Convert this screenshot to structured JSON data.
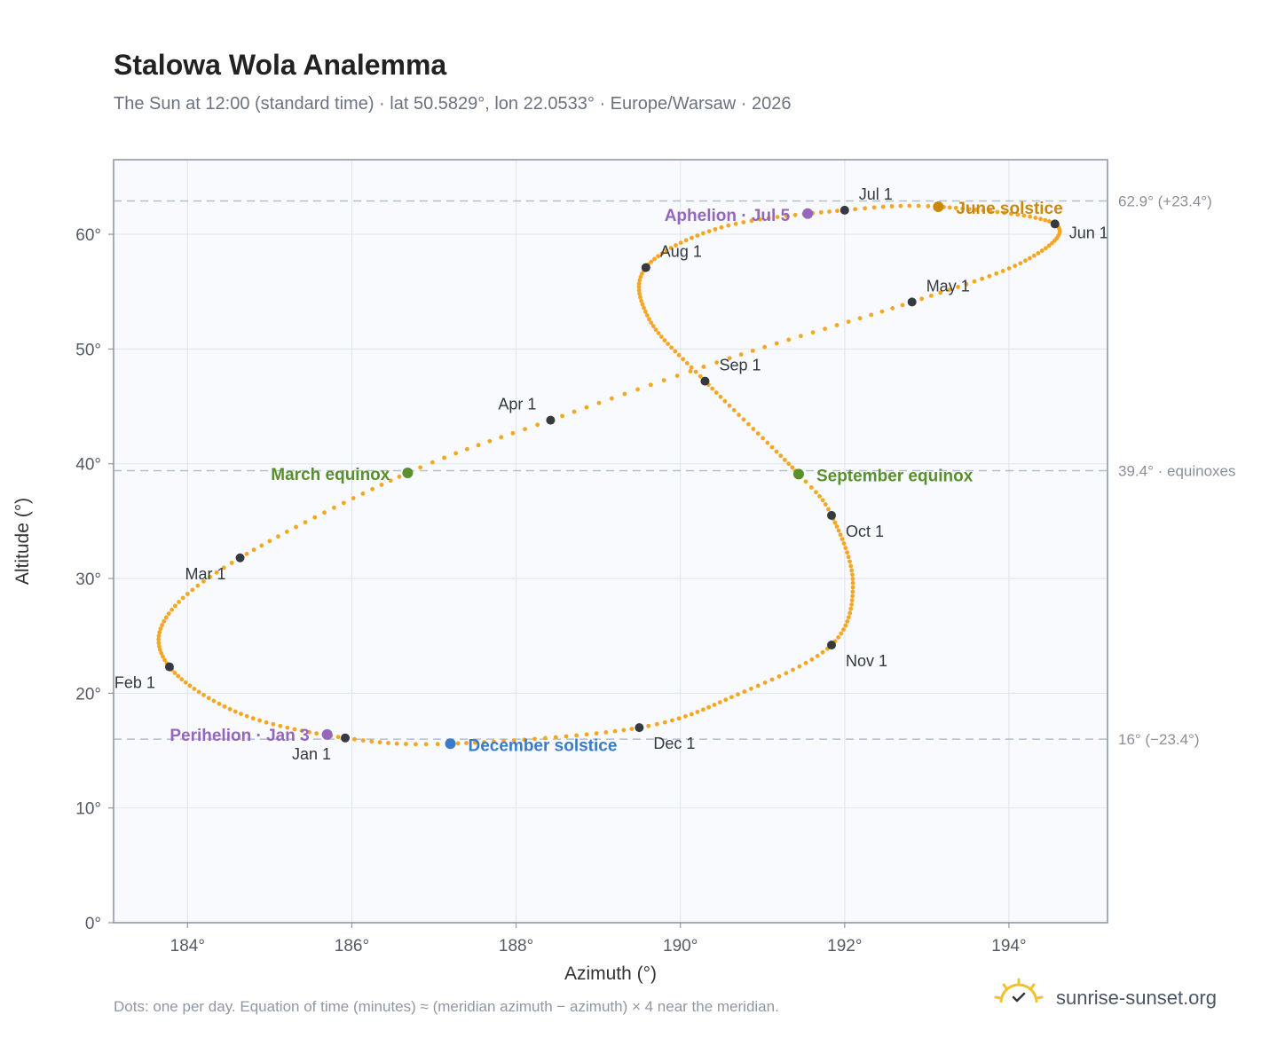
{
  "title": "Stalowa Wola Analemma",
  "subtitle": "The Sun at 12:00 (standard time) · lat 50.5829°, lon 22.0533° · Europe/Warsaw · 2026",
  "footnote": "Dots: one per day. Equation of time (minutes) ≈ (meridian azimuth − azimuth) × 4 near the meridian.",
  "brand": "sunrise-sunset.org",
  "colors": {
    "path": "#f5a623",
    "month_marker": "#343a40",
    "solstice_june": "#c98a0c",
    "solstice_december": "#3a7bc8",
    "equinox": "#5a8f2e",
    "apsis": "#9467bd",
    "reference_line": "#b4bfcc",
    "plot_background": "#f8fafd",
    "plot_border": "#8f99a8",
    "grid": "#e3e8ef"
  },
  "chart_data": {
    "type": "scatter",
    "xlabel": "Azimuth (°)",
    "ylabel": "Altitude (°)",
    "xlim": [
      183.1,
      195.2
    ],
    "ylim": [
      0,
      66.5
    ],
    "x_ticks": [
      {
        "value": 184,
        "label": "184°"
      },
      {
        "value": 186,
        "label": "186°"
      },
      {
        "value": 188,
        "label": "188°"
      },
      {
        "value": 190,
        "label": "190°"
      },
      {
        "value": 192,
        "label": "192°"
      },
      {
        "value": 194,
        "label": "194°"
      }
    ],
    "y_ticks": [
      {
        "value": 0,
        "label": "0°"
      },
      {
        "value": 10,
        "label": "10°"
      },
      {
        "value": 20,
        "label": "20°"
      },
      {
        "value": 30,
        "label": "30°"
      },
      {
        "value": 40,
        "label": "40°"
      },
      {
        "value": 50,
        "label": "50°"
      },
      {
        "value": 60,
        "label": "60°"
      }
    ],
    "grid": true,
    "reference_lines": [
      {
        "y": 62.9,
        "label": "62.9° (+23.4°)"
      },
      {
        "y": 39.4,
        "label": "39.4° · equinoxes"
      },
      {
        "y": 16.0,
        "label": "16° (−23.4°)"
      }
    ],
    "path_series": {
      "description_points": "one dot per day, anchors for smooth interpolation",
      "anchors": [
        {
          "day": 1,
          "az": 185.92,
          "alt": 16.1
        },
        {
          "day": 16,
          "az": 184.65,
          "alt": 18.2
        },
        {
          "day": 32,
          "az": 183.78,
          "alt": 22.3
        },
        {
          "day": 46,
          "az": 183.74,
          "alt": 26.6
        },
        {
          "day": 60,
          "az": 184.64,
          "alt": 31.8
        },
        {
          "day": 79,
          "az": 186.68,
          "alt": 39.2
        },
        {
          "day": 91,
          "az": 188.42,
          "alt": 43.8
        },
        {
          "day": 105,
          "az": 190.6,
          "alt": 49.2
        },
        {
          "day": 121,
          "az": 192.82,
          "alt": 54.1
        },
        {
          "day": 136,
          "az": 194.2,
          "alt": 57.7
        },
        {
          "day": 152,
          "az": 194.56,
          "alt": 60.9
        },
        {
          "day": 172,
          "az": 193.14,
          "alt": 62.4
        },
        {
          "day": 182,
          "az": 192.0,
          "alt": 62.1
        },
        {
          "day": 197,
          "az": 190.5,
          "alt": 60.6
        },
        {
          "day": 213,
          "az": 189.58,
          "alt": 57.1
        },
        {
          "day": 228,
          "az": 189.62,
          "alt": 52.6
        },
        {
          "day": 244,
          "az": 190.3,
          "alt": 47.2
        },
        {
          "day": 266,
          "az": 191.44,
          "alt": 39.1
        },
        {
          "day": 274,
          "az": 191.84,
          "alt": 35.5
        },
        {
          "day": 290,
          "az": 192.1,
          "alt": 29.6
        },
        {
          "day": 305,
          "az": 191.84,
          "alt": 24.2
        },
        {
          "day": 320,
          "az": 190.7,
          "alt": 19.9
        },
        {
          "day": 335,
          "az": 189.5,
          "alt": 17.0
        },
        {
          "day": 355,
          "az": 187.2,
          "alt": 15.6
        },
        {
          "day": 366,
          "az": 185.92,
          "alt": 16.1
        }
      ]
    },
    "month_markers": [
      {
        "label": "Jan 1",
        "az": 185.92,
        "alt": 16.1
      },
      {
        "label": "Feb 1",
        "az": 183.78,
        "alt": 22.3
      },
      {
        "label": "Mar 1",
        "az": 184.64,
        "alt": 31.8
      },
      {
        "label": "Apr 1",
        "az": 188.42,
        "alt": 43.8
      },
      {
        "label": "May 1",
        "az": 192.82,
        "alt": 54.1
      },
      {
        "label": "Jun 1",
        "az": 194.56,
        "alt": 60.9
      },
      {
        "label": "Jul 1",
        "az": 192.0,
        "alt": 62.1
      },
      {
        "label": "Aug 1",
        "az": 189.58,
        "alt": 57.1
      },
      {
        "label": "Sep 1",
        "az": 190.3,
        "alt": 47.2
      },
      {
        "label": "Oct 1",
        "az": 191.84,
        "alt": 35.5
      },
      {
        "label": "Nov 1",
        "az": 191.84,
        "alt": 24.2
      },
      {
        "label": "Dec 1",
        "az": 189.5,
        "alt": 17.0
      }
    ],
    "events": [
      {
        "label": "June solstice",
        "az": 193.14,
        "alt": 62.4,
        "kind": "solstice_june"
      },
      {
        "label": "December solstice",
        "az": 187.2,
        "alt": 15.6,
        "kind": "solstice_december"
      },
      {
        "label": "March equinox",
        "az": 186.68,
        "alt": 39.2,
        "kind": "equinox"
      },
      {
        "label": "September equinox",
        "az": 191.44,
        "alt": 39.1,
        "kind": "equinox"
      },
      {
        "label": "Aphelion · Jul 5",
        "az": 191.55,
        "alt": 61.8,
        "kind": "apsis"
      },
      {
        "label": "Perihelion · Jan 3",
        "az": 185.7,
        "alt": 16.4,
        "kind": "apsis"
      }
    ]
  }
}
